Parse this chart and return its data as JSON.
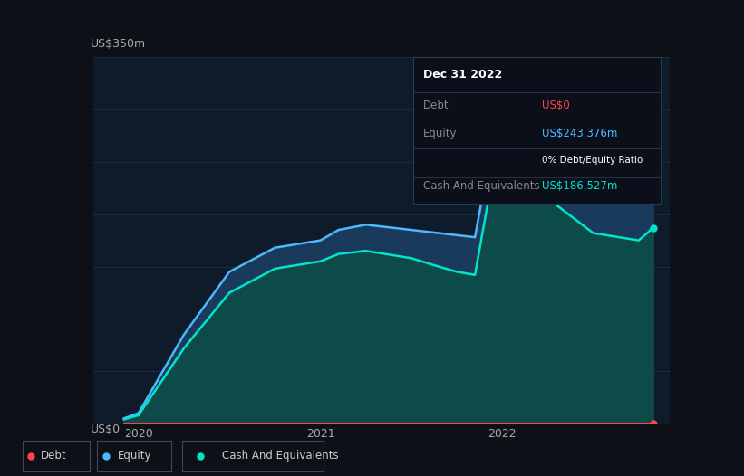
{
  "background_color": "#0d1117",
  "plot_bg_color": "#0d1b2a",
  "ylabel": "US$350m",
  "y0label": "US$0",
  "xlim": [
    2019.75,
    2022.92
  ],
  "ylim": [
    0,
    350
  ],
  "grid_color": "#1e2d3d",
  "xtick_labels": [
    "2020",
    "2021",
    "2022"
  ],
  "xtick_positions": [
    2020,
    2021,
    2022
  ],
  "debt_color": "#ff4444",
  "equity_color": "#4db8ff",
  "cash_color": "#00e5cc",
  "equity_fill_color": "#1a3a5c",
  "cash_fill_color": "#0d4a4a",
  "tooltip": {
    "title": "Dec 31 2022",
    "bg_color": "#0a0f1a",
    "border_color": "#2a3a4a",
    "debt_label": "Debt",
    "debt_value": "US$0",
    "debt_value_color": "#ff4444",
    "equity_label": "Equity",
    "equity_value": "US$243.376m",
    "equity_value_color": "#4db8ff",
    "ratio_label": "0% Debt/Equity Ratio",
    "cash_label": "Cash And Equivalents",
    "cash_value": "US$186.527m",
    "cash_value_color": "#00e5cc"
  },
  "legend": {
    "debt_label": "Debt",
    "equity_label": "Equity",
    "cash_label": "Cash And Equivalents",
    "border_color": "#3a4a5a",
    "text_color": "#cccccc"
  },
  "time_points": [
    2019.92,
    2020.0,
    2020.25,
    2020.5,
    2020.75,
    2021.0,
    2021.1,
    2021.25,
    2021.5,
    2021.65,
    2021.75,
    2021.85,
    2022.0,
    2022.25,
    2022.5,
    2022.75,
    2022.83
  ],
  "equity_values": [
    5,
    10,
    85,
    145,
    168,
    175,
    185,
    190,
    185,
    182,
    180,
    178,
    320,
    275,
    245,
    232,
    243
  ],
  "cash_values": [
    4,
    8,
    72,
    125,
    148,
    155,
    162,
    165,
    158,
    150,
    145,
    142,
    288,
    215,
    182,
    175,
    187
  ],
  "debt_values": [
    0,
    0,
    0,
    0,
    0,
    0,
    0,
    0,
    0,
    0,
    0,
    0,
    0,
    0,
    0,
    0,
    0
  ]
}
